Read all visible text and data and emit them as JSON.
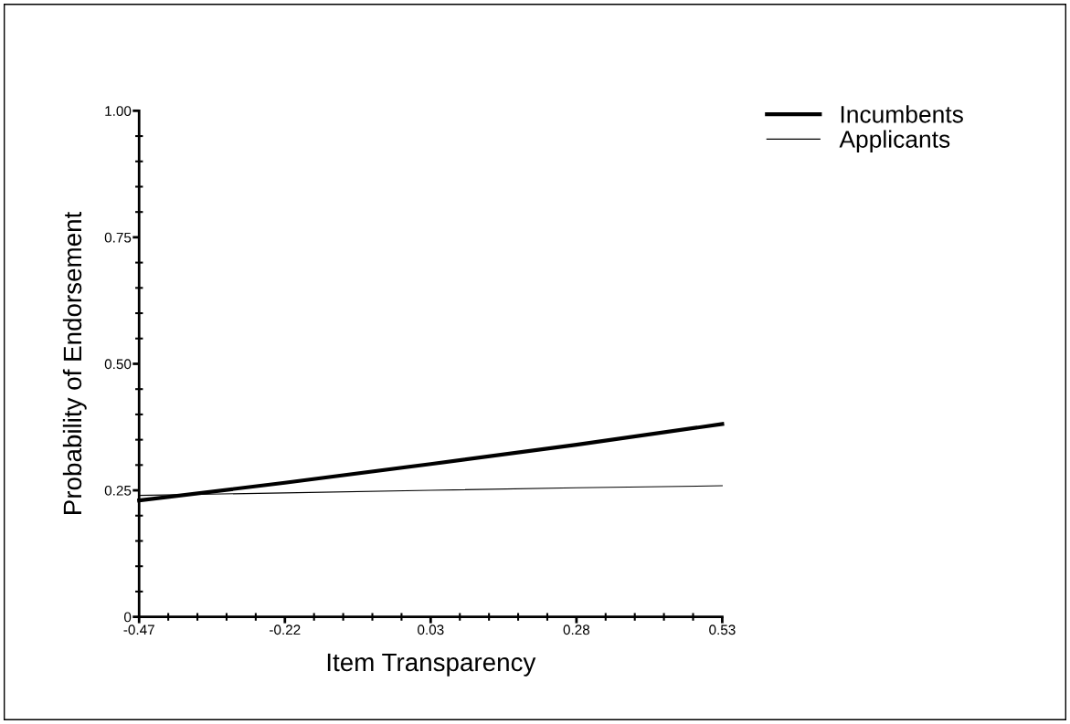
{
  "chart_data": {
    "type": "line",
    "xlabel": "Item Transparency",
    "ylabel": "Probability of Endorsement",
    "x": [
      -0.47,
      -0.22,
      0.03,
      0.28,
      0.53
    ],
    "series": [
      {
        "name": "Incumbents",
        "color": "#000000",
        "values": [
          0.23,
          0.265,
          0.302,
          0.34,
          0.381
        ]
      },
      {
        "name": "Applicants",
        "color": "#000000",
        "values": [
          0.24,
          0.245,
          0.25,
          0.255,
          0.259
        ]
      }
    ],
    "xlim": [
      -0.47,
      0.53
    ],
    "xticks": [
      -0.47,
      -0.22,
      0.03,
      0.28,
      0.53
    ],
    "ylim": [
      0,
      1
    ],
    "yticks": [
      0,
      {
        "value": 0.25,
        "label": "0.25"
      },
      {
        "value": 0.5,
        "label": "0.50"
      },
      {
        "value": 0.75,
        "label": "0.75"
      },
      {
        "value": 1,
        "label": "1.00"
      }
    ],
    "grid": false,
    "legend": "top right",
    "marker": "none",
    "line_style": "solid"
  }
}
